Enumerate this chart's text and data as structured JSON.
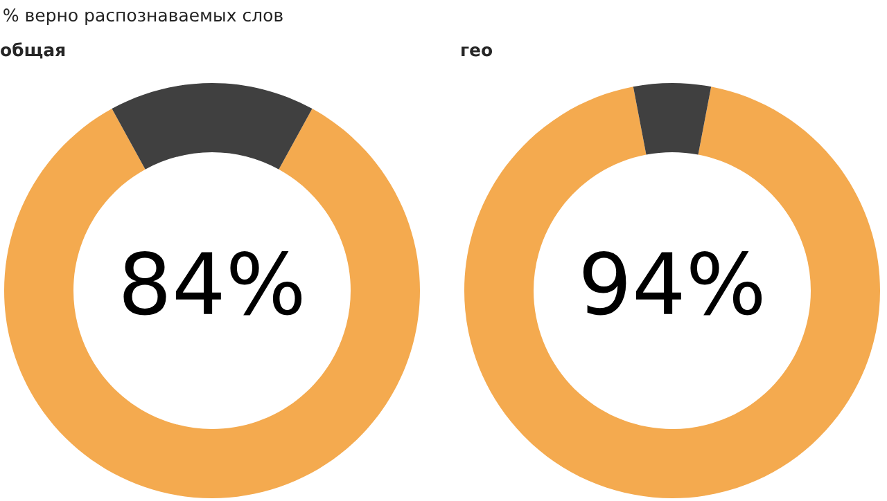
{
  "chart_data": [
    {
      "type": "donut",
      "title": "общая",
      "annotations": [
        "% верно распознаваемых слов",
        "84%"
      ],
      "categories": [
        null,
        null
      ],
      "values": [
        84,
        16
      ],
      "colors": [
        "#f4aa4f",
        "#404040"
      ],
      "legend": false
    },
    {
      "type": "donut",
      "title": "гео",
      "annotations": [
        "94%"
      ],
      "categories": [
        null,
        null
      ],
      "values": [
        94,
        6
      ],
      "colors": [
        "#f4aa4f",
        "#404040"
      ],
      "legend": false
    }
  ]
}
